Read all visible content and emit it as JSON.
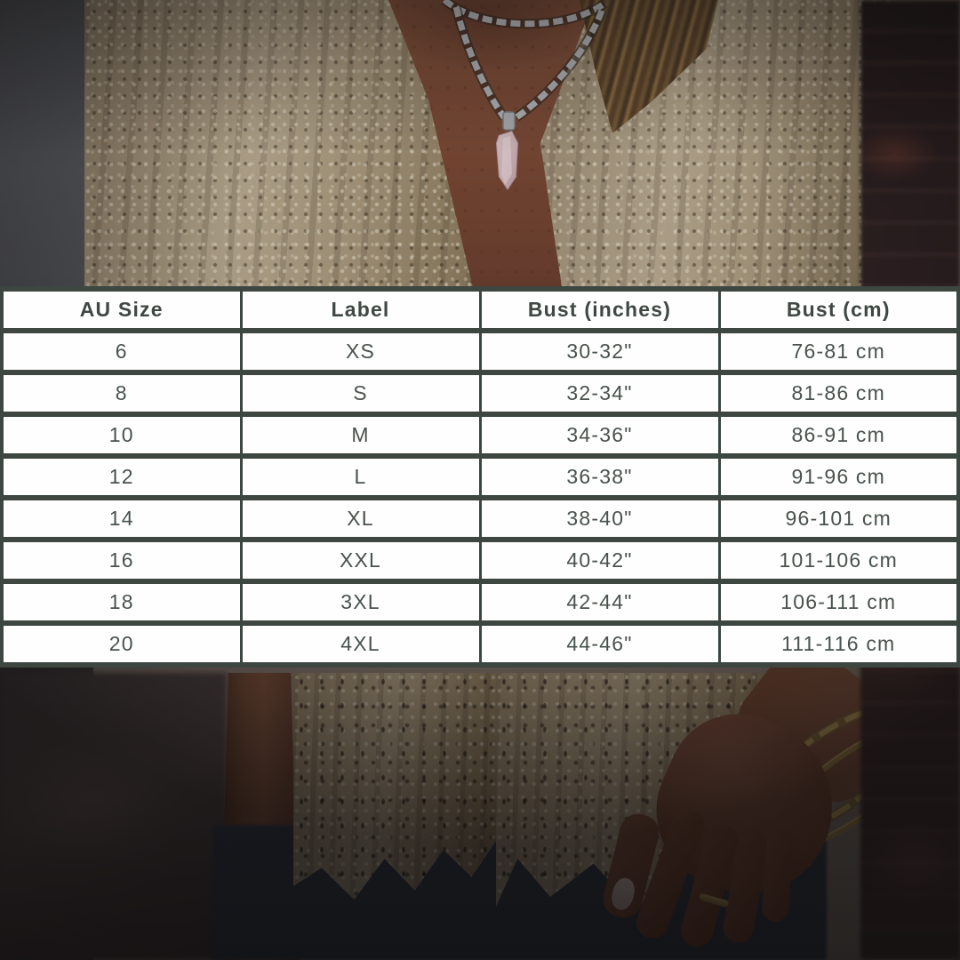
{
  "chart_data": {
    "type": "table",
    "columns": [
      "AU Size",
      "Label",
      "Bust (inches)",
      "Bust (cm)"
    ],
    "rows": [
      [
        "6",
        "XS",
        "30-32\"",
        "76-81 cm"
      ],
      [
        "8",
        "S",
        "32-34\"",
        "81-86 cm"
      ],
      [
        "10",
        "M",
        "34-36\"",
        "86-91 cm"
      ],
      [
        "12",
        "L",
        "36-38\"",
        "91-96 cm"
      ],
      [
        "14",
        "XL",
        "38-40\"",
        "96-101 cm"
      ],
      [
        "16",
        "XXL",
        "40-42\"",
        "101-106 cm"
      ],
      [
        "18",
        "3XL",
        "42-44\"",
        "106-111 cm"
      ],
      [
        "20",
        "4XL",
        "44-46\"",
        "111-116 cm"
      ]
    ]
  },
  "colors": {
    "table_border": "#3d4641",
    "table_text": "#49524c",
    "cell_background": "#fefefe",
    "knit_beige": "#b5a68a",
    "denim_blue": "#39424d",
    "brick_brown": "#3f2d2b",
    "gold_bangle": "#c9a85e",
    "rose_quartz": "#e6cdd1"
  }
}
